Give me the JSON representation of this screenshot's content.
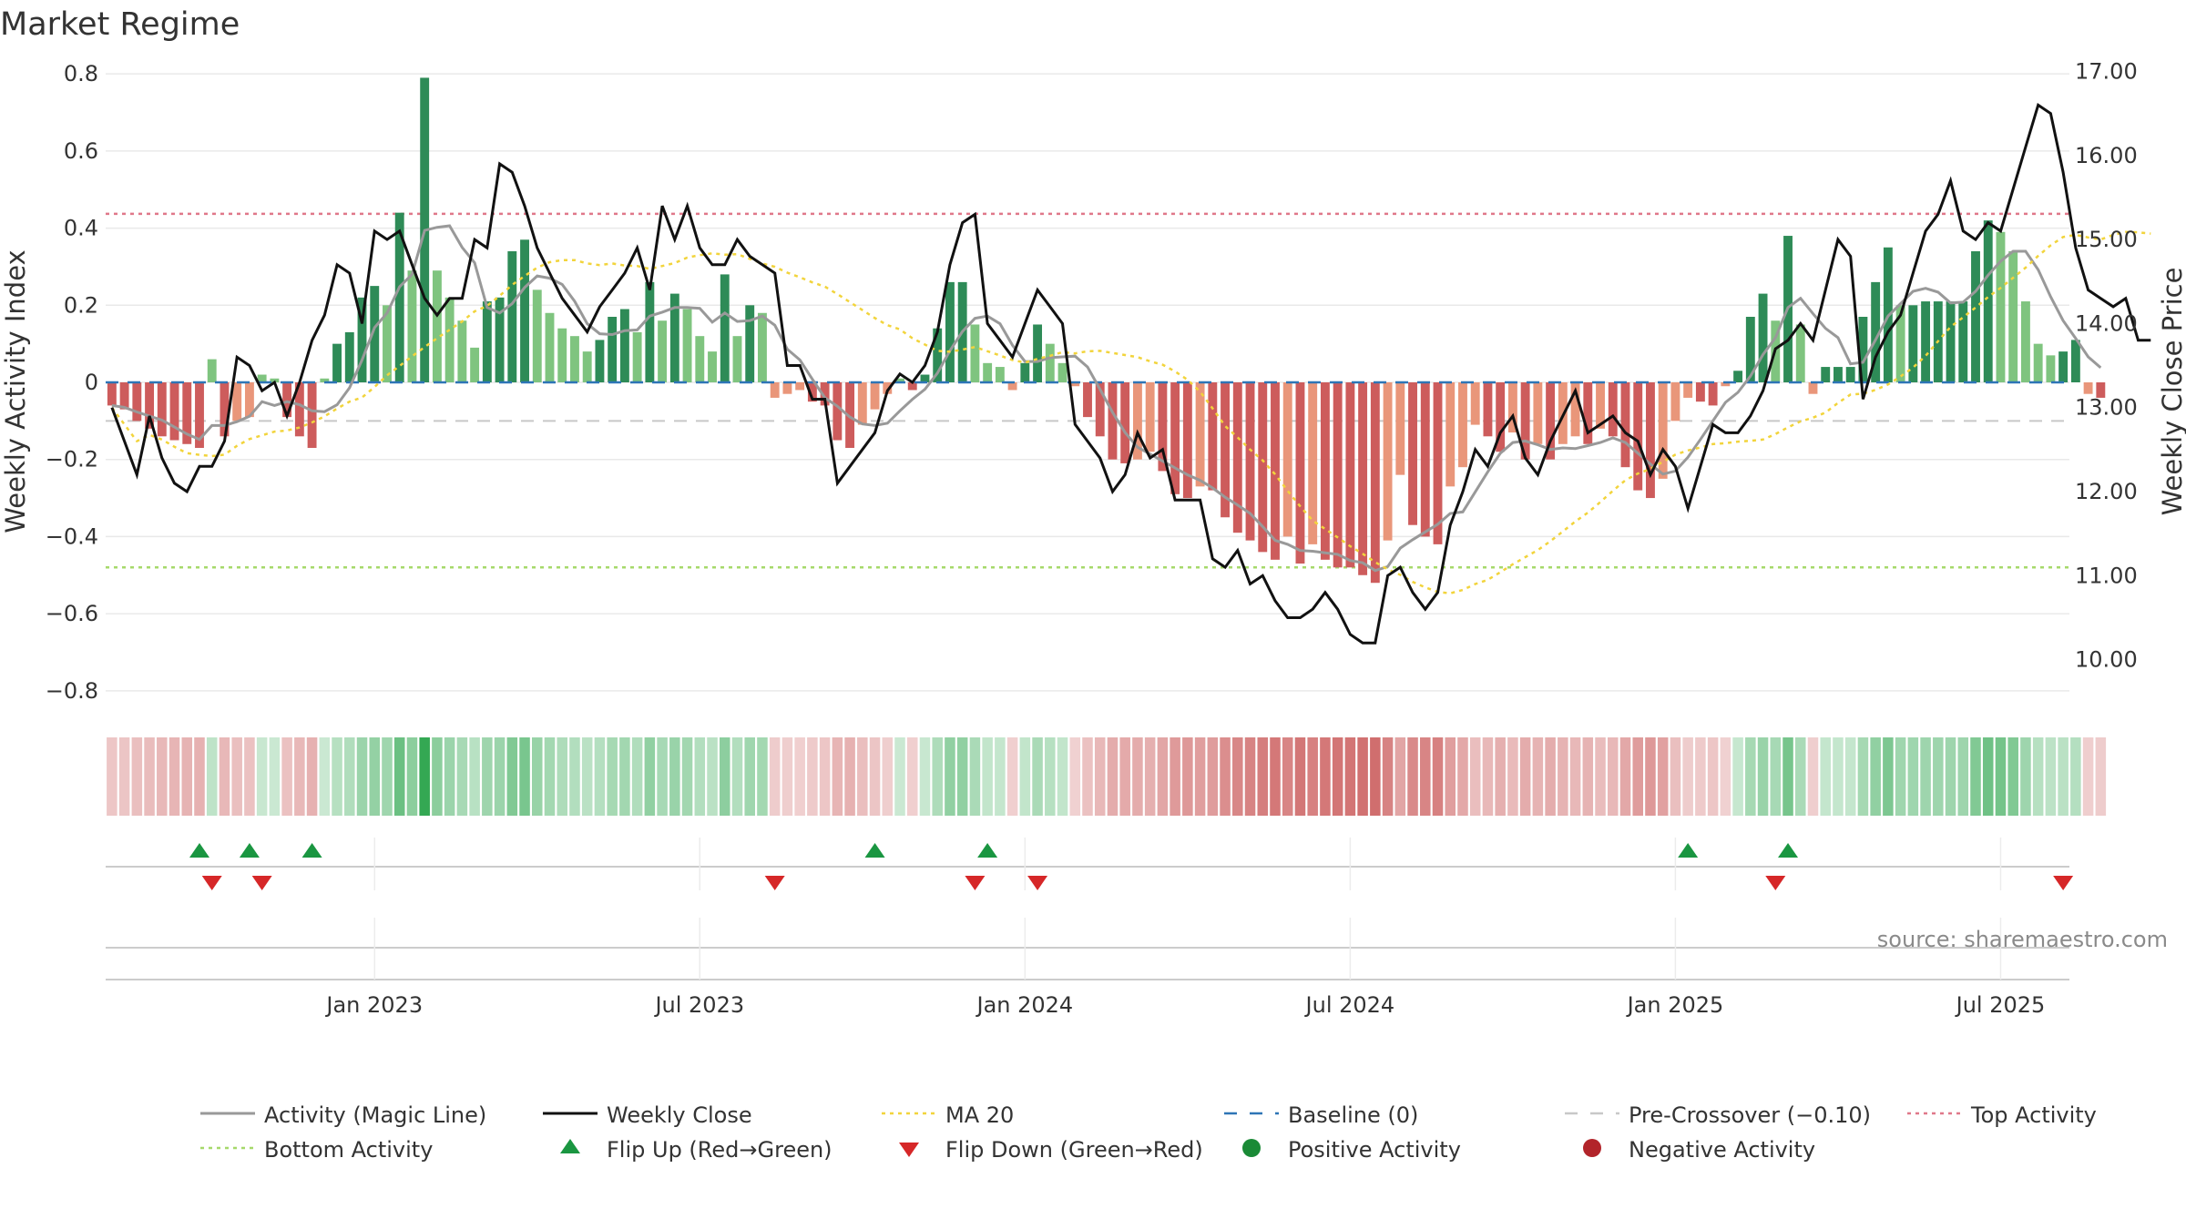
{
  "chart_data": {
    "type": "bar",
    "title": "Market Regime",
    "ylabel_left": "Weekly Activity Index",
    "ylabel_right": "Weekly Close Price",
    "ylim_left": [
      -0.85,
      0.85
    ],
    "ylim_right": [
      9.4,
      17.2
    ],
    "yticks_left": [
      0.8,
      0.6,
      0.4,
      0.2,
      0,
      -0.2,
      -0.4,
      -0.6,
      -0.8
    ],
    "yticks_left_labels": [
      "0.8",
      "0.6",
      "0.4",
      "0.2",
      "0",
      "−0.2",
      "−0.4",
      "−0.6",
      "−0.8"
    ],
    "yticks_right": [
      17,
      16,
      15,
      14,
      13,
      12,
      11,
      10
    ],
    "yticks_right_labels": [
      "17.00",
      "16.00",
      "15.00",
      "14.00",
      "13.00",
      "12.00",
      "11.00",
      "10.00"
    ],
    "xlabels": [
      "Jan 2023",
      "Jul 2023",
      "Jan 2024",
      "Jul 2024",
      "Jan 2025",
      "Jul 2025"
    ],
    "xlabel_weeks": [
      21,
      47,
      73,
      99,
      125,
      151
    ],
    "levels": {
      "top": 0.437,
      "bottom": -0.48,
      "pre_crossover": -0.1,
      "baseline": 0
    },
    "activity": [
      -0.06,
      -0.07,
      -0.1,
      -0.12,
      -0.14,
      -0.15,
      -0.16,
      -0.17,
      0.06,
      -0.14,
      -0.1,
      -0.09,
      0.02,
      0.01,
      -0.09,
      -0.14,
      -0.17,
      0.01,
      0.1,
      0.13,
      0.22,
      0.25,
      0.2,
      0.44,
      0.29,
      0.79,
      0.29,
      0.22,
      0.16,
      0.09,
      0.21,
      0.22,
      0.34,
      0.37,
      0.24,
      0.18,
      0.14,
      0.12,
      0.08,
      0.11,
      0.17,
      0.19,
      0.13,
      0.26,
      0.16,
      0.23,
      0.19,
      0.12,
      0.08,
      0.28,
      0.12,
      0.2,
      0.18,
      -0.04,
      -0.03,
      -0.02,
      -0.05,
      -0.06,
      -0.15,
      -0.17,
      -0.11,
      -0.07,
      -0.03,
      0.01,
      -0.02,
      0.02,
      0.14,
      0.26,
      0.26,
      0.15,
      0.05,
      0.04,
      -0.02,
      0.05,
      0.15,
      0.1,
      0.05,
      -0.01,
      -0.09,
      -0.14,
      -0.2,
      -0.21,
      -0.2,
      -0.18,
      -0.23,
      -0.29,
      -0.3,
      -0.27,
      -0.28,
      -0.35,
      -0.39,
      -0.41,
      -0.44,
      -0.46,
      -0.4,
      -0.47,
      -0.42,
      -0.46,
      -0.48,
      -0.48,
      -0.5,
      -0.52,
      -0.41,
      -0.24,
      -0.37,
      -0.4,
      -0.42,
      -0.27,
      -0.22,
      -0.11,
      -0.14,
      -0.18,
      -0.13,
      -0.2,
      -0.16,
      -0.2,
      -0.16,
      -0.14,
      -0.16,
      -0.12,
      -0.14,
      -0.22,
      -0.28,
      -0.3,
      -0.25,
      -0.1,
      -0.04,
      -0.05,
      -0.06,
      -0.01,
      0.03,
      0.17,
      0.23,
      0.16,
      0.38,
      0.15,
      -0.03,
      0.04,
      0.04,
      0.04,
      0.17,
      0.26,
      0.35,
      0.2,
      0.2,
      0.21,
      0.21,
      0.21,
      0.21,
      0.34,
      0.42,
      0.39,
      0.34,
      0.21,
      0.1,
      0.07,
      0.08,
      0.11,
      -0.03,
      -0.04
    ],
    "close": [
      13.0,
      12.6,
      12.2,
      12.9,
      12.4,
      12.1,
      12.0,
      12.3,
      12.3,
      12.6,
      13.6,
      13.5,
      13.2,
      13.3,
      12.9,
      13.3,
      13.8,
      14.1,
      14.7,
      14.6,
      14.0,
      15.1,
      15.0,
      15.1,
      14.7,
      14.3,
      14.1,
      14.3,
      14.3,
      15.0,
      14.9,
      15.9,
      15.8,
      15.4,
      14.9,
      14.6,
      14.3,
      14.1,
      13.9,
      14.2,
      14.4,
      14.6,
      14.9,
      14.4,
      15.4,
      15.0,
      15.4,
      14.9,
      14.7,
      14.7,
      15.0,
      14.8,
      14.7,
      14.6,
      13.5,
      13.5,
      13.1,
      13.1,
      12.1,
      12.3,
      12.5,
      12.7,
      13.2,
      13.4,
      13.3,
      13.5,
      13.9,
      14.7,
      15.2,
      15.3,
      14.0,
      13.8,
      13.6,
      14.0,
      14.4,
      14.2,
      14.0,
      12.8,
      12.6,
      12.4,
      12.0,
      12.2,
      12.7,
      12.4,
      12.5,
      11.9,
      11.9,
      11.9,
      11.2,
      11.1,
      11.3,
      10.9,
      11.0,
      10.7,
      10.5,
      10.5,
      10.6,
      10.8,
      10.6,
      10.3,
      10.2,
      10.2,
      11.0,
      11.1,
      10.8,
      10.6,
      10.8,
      11.6,
      12.0,
      12.5,
      12.3,
      12.7,
      12.9,
      12.4,
      12.2,
      12.6,
      12.9,
      13.2,
      12.7,
      12.8,
      12.9,
      12.7,
      12.6,
      12.2,
      12.5,
      12.3,
      11.8,
      12.3,
      12.8,
      12.7,
      12.7,
      12.9,
      13.2,
      13.7,
      13.8,
      14.0,
      13.8,
      14.4,
      15.0,
      14.8,
      13.1,
      13.6,
      13.9,
      14.1,
      14.6,
      15.1,
      15.3,
      15.7,
      15.1,
      15.0,
      15.2,
      15.1,
      15.6,
      16.1,
      16.6,
      16.5,
      15.8,
      14.9,
      14.4,
      14.3,
      14.2,
      14.3,
      13.8,
      13.8
    ],
    "weeks": 157,
    "flip_up_weeks": [
      7,
      11,
      16,
      61,
      70,
      126,
      134
    ],
    "flip_down_weeks": [
      8,
      12,
      53,
      69,
      74,
      133,
      156
    ],
    "legend": [
      {
        "label": "Activity (Magic Line)",
        "style": "solid",
        "color": "#999999"
      },
      {
        "label": "Weekly Close",
        "style": "solid",
        "color": "#111111"
      },
      {
        "label": "MA 20",
        "style": "dotted",
        "color": "#f2d43c"
      },
      {
        "label": "Baseline (0)",
        "style": "dashed",
        "color": "#2e75b6"
      },
      {
        "label": "Pre-Crossover (−0.10)",
        "style": "dashed",
        "color": "#c8c8c8"
      },
      {
        "label": "Top Activity",
        "style": "dotted",
        "color": "#e0788a"
      },
      {
        "label": "Bottom Activity",
        "style": "dotted",
        "color": "#a6d96a"
      },
      {
        "label": "Flip Up (Red→Green)",
        "style": "tri-up",
        "color": "#1a9641"
      },
      {
        "label": "Flip Down (Green→Red)",
        "style": "tri-down",
        "color": "#d62728"
      },
      {
        "label": "Positive Activity",
        "style": "dot",
        "color": "#1a8a36"
      },
      {
        "label": "Negative Activity",
        "style": "dot",
        "color": "#b2242a"
      }
    ],
    "colors": {
      "pos_strong": "#2e8b57",
      "pos_light": "#7fc47f",
      "neg_strong": "#cd5c5c",
      "neg_light": "#e9967a"
    }
  },
  "source": "source: sharemaestro.com"
}
